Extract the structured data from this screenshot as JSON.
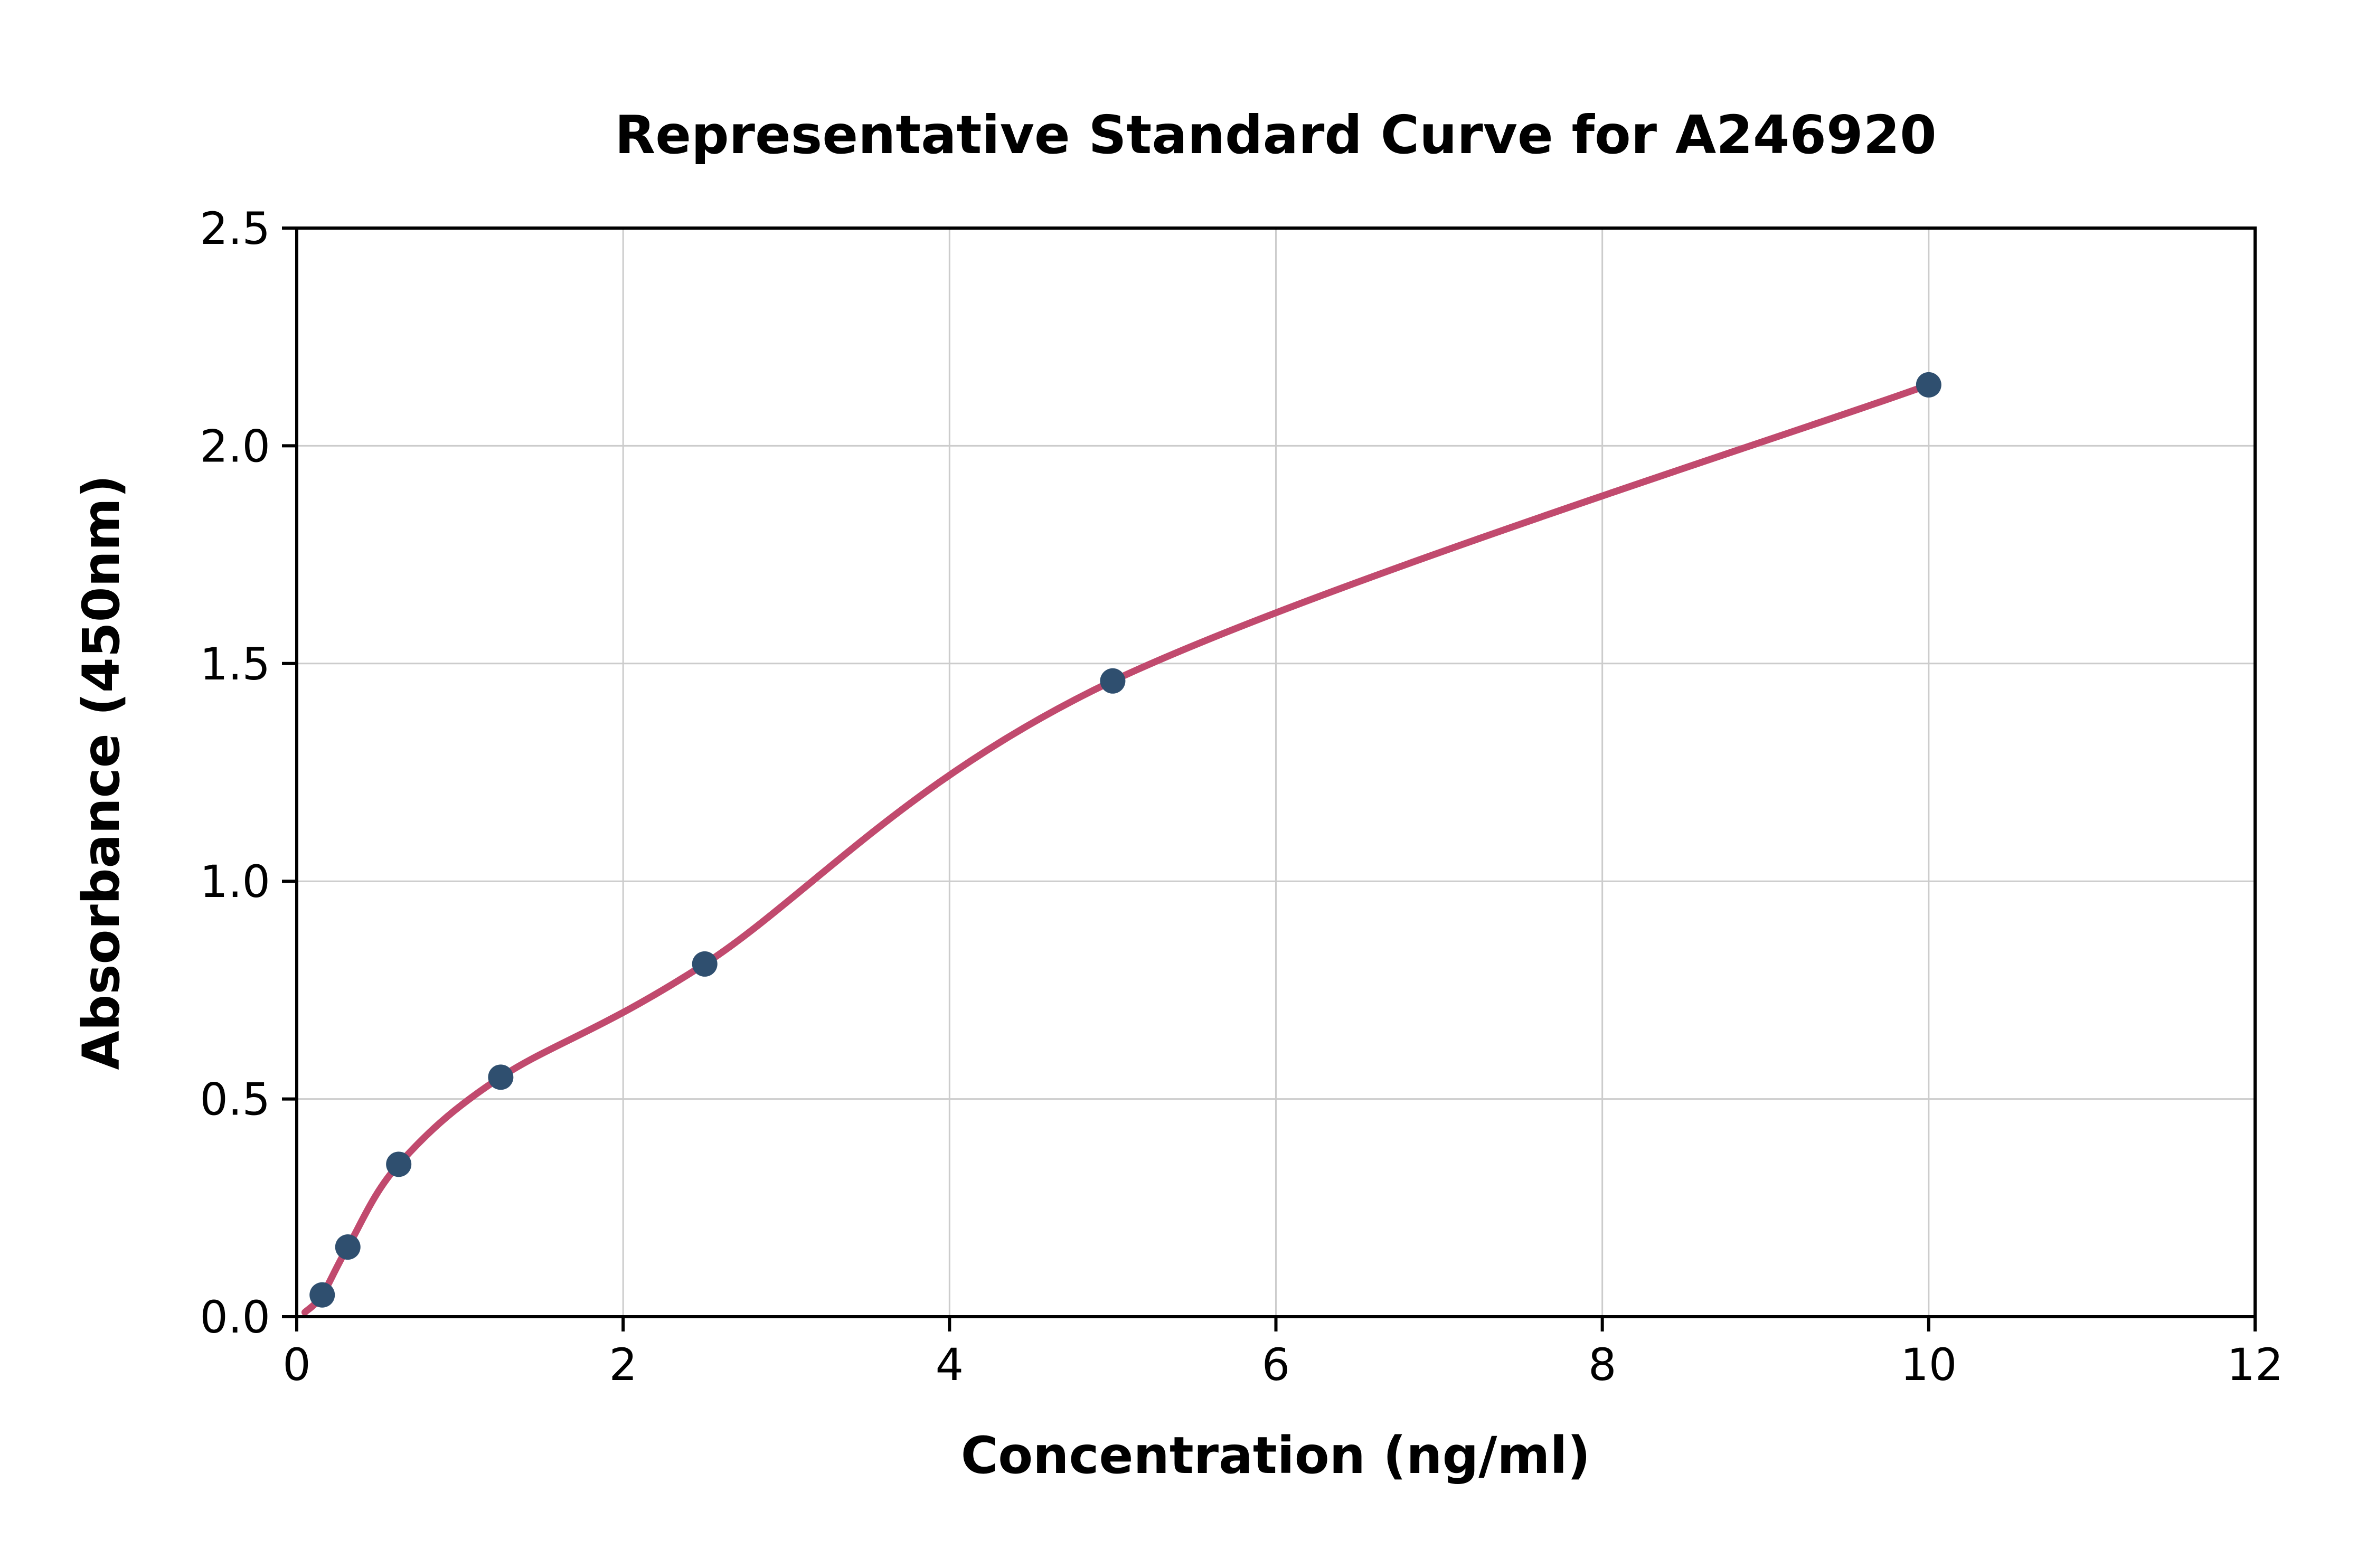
{
  "figure": {
    "background": "#ffffff"
  },
  "chart_data": {
    "type": "scatter",
    "title": "Representative Standard Curve for A246920",
    "xlabel": "Concentration (ng/ml)",
    "ylabel": "Absorbance (450nm)",
    "xlim": [
      0,
      12
    ],
    "ylim": [
      0,
      2.5
    ],
    "grid": true,
    "legend": "none",
    "x_ticks": [
      0,
      2,
      4,
      6,
      8,
      10,
      12
    ],
    "x_tick_labels": [
      "0",
      "2",
      "4",
      "6",
      "8",
      "10",
      "12"
    ],
    "y_ticks": [
      0,
      0.5,
      1.0,
      1.5,
      2.0,
      2.5
    ],
    "y_tick_labels": [
      "0.0",
      "0.5",
      "1.0",
      "1.5",
      "2.0",
      "2.5"
    ],
    "points": {
      "x": [
        0.156,
        0.313,
        0.625,
        1.25,
        2.5,
        5,
        10
      ],
      "y": [
        0.05,
        0.16,
        0.35,
        0.55,
        0.81,
        1.46,
        2.14
      ]
    },
    "curve": {
      "type": "smooth-fit-through-points",
      "start": [
        0.05,
        0.01
      ]
    },
    "colors": {
      "marker": "#2f4f6f",
      "curve": "#c14a6e",
      "grid": "#cccccc",
      "frame": "#000000",
      "text": "#000000"
    }
  }
}
